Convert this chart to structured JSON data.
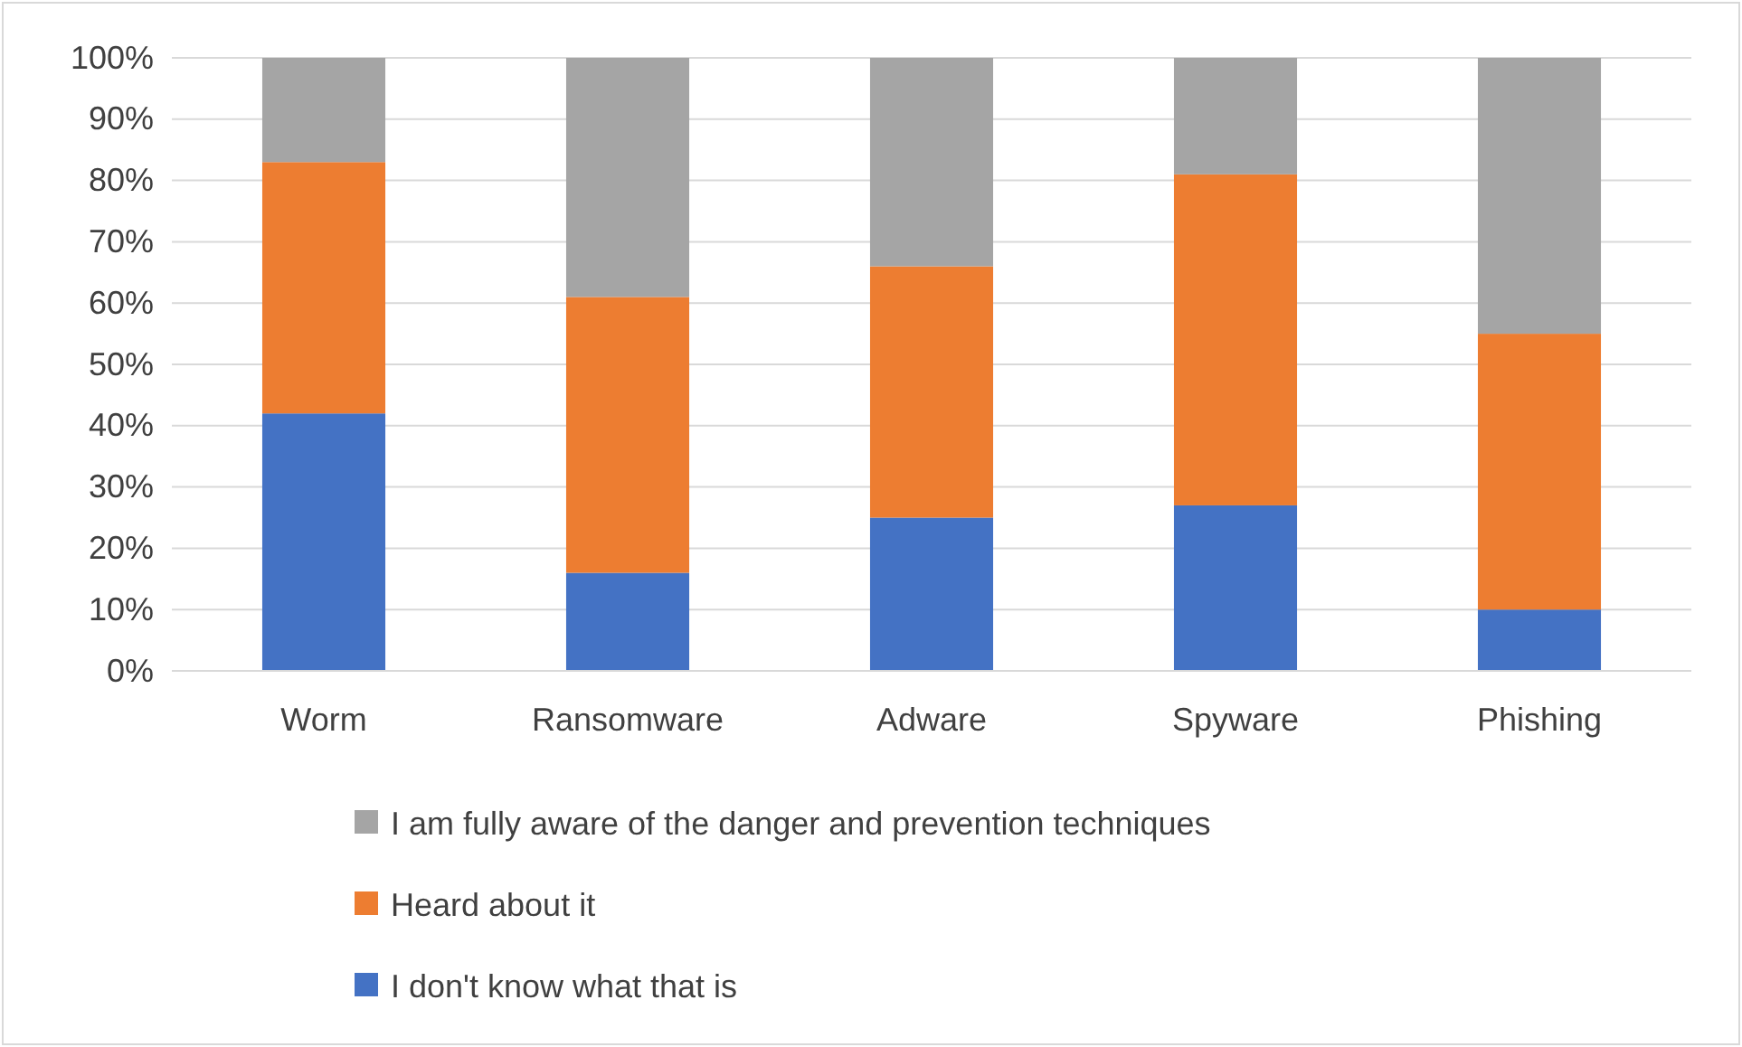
{
  "chart_data": {
    "type": "bar",
    "stacked": true,
    "categories": [
      "Worm",
      "Ransomware",
      "Adware",
      "Spyware",
      "Phishing"
    ],
    "series": [
      {
        "name": "I don't know what that is",
        "color": "#4472c4",
        "values": [
          42,
          16,
          25,
          27,
          10
        ]
      },
      {
        "name": "Heard about it",
        "color": "#ed7d31",
        "values": [
          41,
          45,
          41,
          54,
          45
        ]
      },
      {
        "name": "I am fully aware of the danger and prevention techniques",
        "color": "#a5a5a5",
        "values": [
          17,
          39,
          34,
          19,
          45
        ]
      }
    ],
    "ylim": [
      0,
      100
    ],
    "yticks": [
      {
        "value": 0,
        "label": "0%"
      },
      {
        "value": 10,
        "label": "10%"
      },
      {
        "value": 20,
        "label": "20%"
      },
      {
        "value": 30,
        "label": "30%"
      },
      {
        "value": 40,
        "label": "40%"
      },
      {
        "value": 50,
        "label": "50%"
      },
      {
        "value": 60,
        "label": "60%"
      },
      {
        "value": 70,
        "label": "70%"
      },
      {
        "value": 80,
        "label": "80%"
      },
      {
        "value": 90,
        "label": "90%"
      },
      {
        "value": 100,
        "label": "100%"
      }
    ],
    "grid": "y",
    "legend": "bottom"
  }
}
